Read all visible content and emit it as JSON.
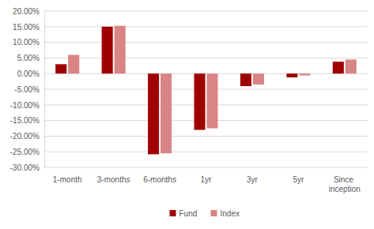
{
  "chart_data": {
    "type": "bar",
    "categories": [
      "1-month",
      "3-months",
      "6-months",
      "1yr",
      "3yr",
      "5yr",
      "Since inception"
    ],
    "series": [
      {
        "name": "Fund",
        "color": "#a00000",
        "values": [
          3.0,
          15.0,
          -25.8,
          -18.0,
          -4.0,
          -1.2,
          3.8
        ]
      },
      {
        "name": "Index",
        "color": "#d98585",
        "values": [
          6.0,
          15.3,
          -25.5,
          -17.5,
          -3.5,
          -0.6,
          4.5
        ]
      }
    ],
    "ylim": [
      -30,
      20
    ],
    "yticks": [
      {
        "value": -30,
        "label": "-30.00%"
      },
      {
        "value": -25,
        "label": "-25.00%"
      },
      {
        "value": -20,
        "label": "-20.00%"
      },
      {
        "value": -15,
        "label": "-15.00%"
      },
      {
        "value": -10,
        "label": "-10.00%"
      },
      {
        "value": -5,
        "label": "-5.00%"
      },
      {
        "value": 0,
        "label": "0.00%"
      },
      {
        "value": 5,
        "label": "5.00%"
      },
      {
        "value": 10,
        "label": "10.00%"
      },
      {
        "value": 15,
        "label": "15.00%"
      },
      {
        "value": 20,
        "label": "20.00%"
      }
    ],
    "grid": true,
    "legend": "bottom"
  }
}
